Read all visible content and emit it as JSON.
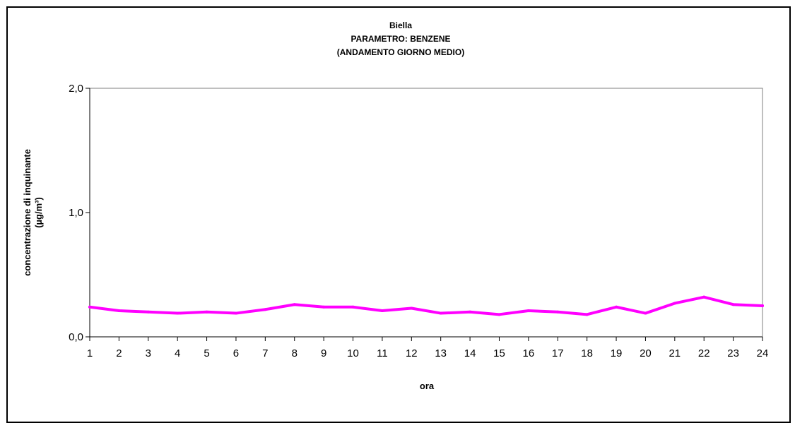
{
  "chart_data": {
    "type": "line",
    "title": "Biella",
    "subtitle": [
      "PARAMETRO: BENZENE",
      "(ANDAMENTO GIORNO MEDIO)"
    ],
    "xlabel": "ora",
    "ylabel": [
      "concentrazione di inquinante",
      "(µg/m³)"
    ],
    "categories": [
      "1",
      "2",
      "3",
      "4",
      "5",
      "6",
      "7",
      "8",
      "9",
      "10",
      "11",
      "12",
      "13",
      "14",
      "15",
      "16",
      "17",
      "18",
      "19",
      "20",
      "21",
      "22",
      "23",
      "24"
    ],
    "series": [
      {
        "name": "",
        "color": "#ff00ff",
        "values": [
          0.24,
          0.21,
          0.2,
          0.19,
          0.2,
          0.19,
          0.22,
          0.26,
          0.24,
          0.24,
          0.21,
          0.23,
          0.19,
          0.2,
          0.18,
          0.21,
          0.2,
          0.18,
          0.24,
          0.19,
          0.27,
          0.32,
          0.26,
          0.25
        ]
      }
    ],
    "ylim": [
      0,
      2.0
    ],
    "yticks": [
      "0,0",
      "1,0",
      "2,0"
    ],
    "grid": false,
    "legend": "none"
  }
}
